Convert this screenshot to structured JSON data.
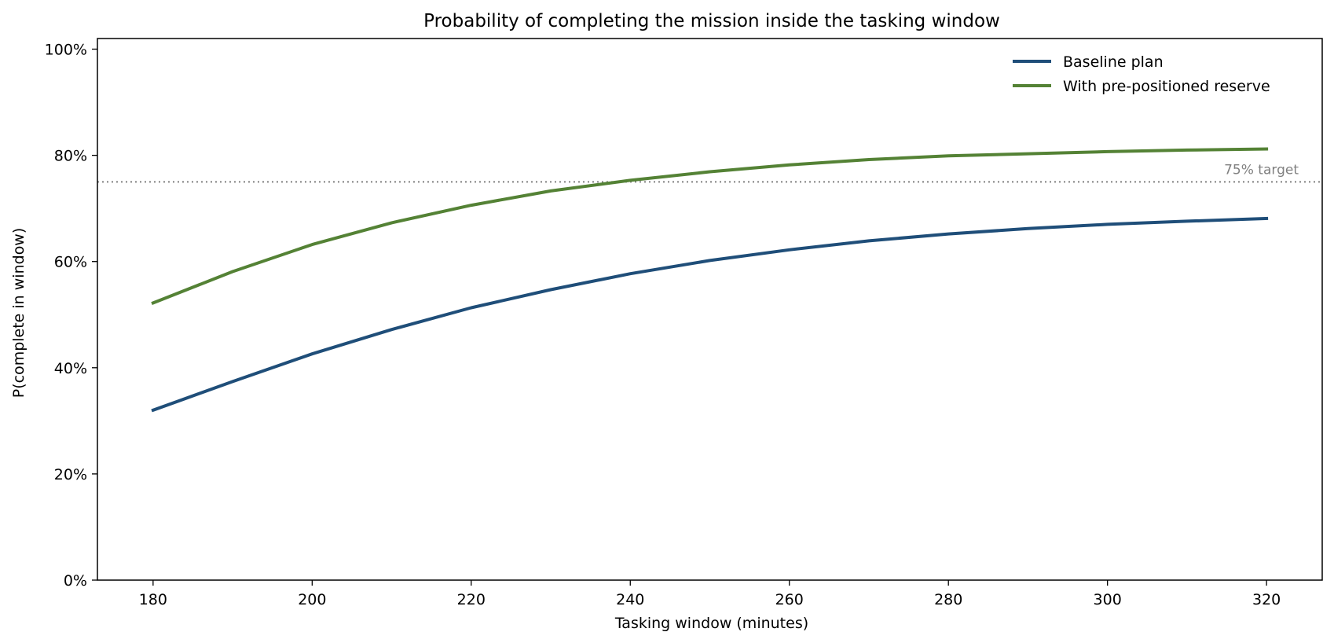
{
  "chart_data": {
    "type": "line",
    "title": "Probability of completing the mission inside the tasking window",
    "xlabel": "Tasking window  (minutes)",
    "ylabel": "P(complete in window)",
    "xlim": [
      173,
      327
    ],
    "ylim": [
      0,
      1.02
    ],
    "x_ticks": [
      180,
      200,
      220,
      240,
      260,
      280,
      300,
      320
    ],
    "y_ticks": [
      0,
      0.2,
      0.4,
      0.6,
      0.8,
      1.0
    ],
    "y_tick_labels": [
      "0%",
      "20%",
      "40%",
      "60%",
      "80%",
      "100%"
    ],
    "grid": false,
    "legend_position": "top-right",
    "x": [
      180,
      190,
      200,
      210,
      220,
      230,
      240,
      250,
      260,
      270,
      280,
      290,
      300,
      310,
      320
    ],
    "series": [
      {
        "name": "Baseline plan",
        "color": "#1f4e79",
        "values": [
          0.32,
          0.374,
          0.426,
          0.472,
          0.513,
          0.547,
          0.577,
          0.602,
          0.622,
          0.639,
          0.652,
          0.662,
          0.67,
          0.676,
          0.681
        ]
      },
      {
        "name": "With pre-positioned reserve",
        "color": "#548235",
        "values": [
          0.522,
          0.581,
          0.632,
          0.673,
          0.706,
          0.733,
          0.753,
          0.769,
          0.782,
          0.792,
          0.799,
          0.803,
          0.807,
          0.81,
          0.812
        ]
      }
    ],
    "reference_line": {
      "value": 0.75,
      "label": "75% target",
      "color": "#808080"
    }
  }
}
